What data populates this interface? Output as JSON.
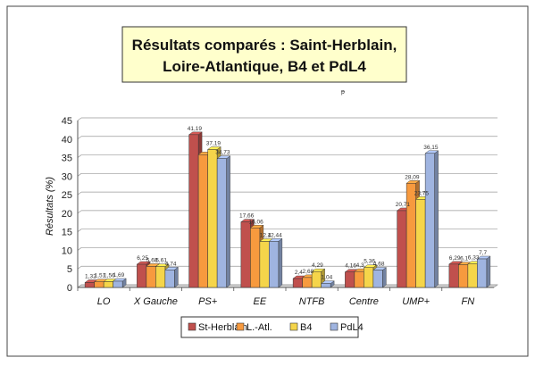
{
  "chart_data": {
    "type": "bar",
    "title": "Résultats comparés : Saint-Herblain, Loire-Atlantique, B4 et PdL4",
    "title_lines": [
      "Résultats comparés : Saint-Herblain,",
      "Loire-Atlantique, B4 et PdL4"
    ],
    "xlabel": "",
    "ylabel": "Résultats (%)",
    "ylim": [
      0,
      45
    ],
    "yticks": [
      "0",
      "5",
      "10",
      "15",
      "20",
      "25",
      "30",
      "35",
      "40",
      "45"
    ],
    "grid": true,
    "legend_position": "bottom",
    "categories": [
      "LO",
      "X Gauche",
      "PS+",
      "EE",
      "NTFB",
      "Centre",
      "UMP+",
      "FN"
    ],
    "series": [
      {
        "name": "St-Herblain",
        "color": "#c0504d",
        "values": [
          1.32,
          6.25,
          41.19,
          17.66,
          2.4,
          4.16,
          20.71,
          6.29
        ],
        "labels": [
          "1,32",
          "6,25",
          "41,19",
          "17,66",
          "2,4",
          "4,16",
          "20,71",
          "6,29"
        ]
      },
      {
        "name": "L.-Atl.",
        "color": "#f79a3e",
        "values": [
          1.51,
          5.68,
          35.8,
          16.06,
          2.68,
          4.3,
          28.09,
          6.1
        ],
        "labels": [
          "1,51",
          "5,68",
          "",
          "16,06",
          "2,68",
          "4,3",
          "28,09",
          "6,1"
        ]
      },
      {
        "name": "B4",
        "color": "#f5d54a",
        "values": [
          1.56,
          5.61,
          37.19,
          12.4,
          4.29,
          5.36,
          23.75,
          6.33
        ],
        "labels": [
          "1,56",
          "5,61",
          "37,19",
          "12,4",
          "4,29",
          "5,36",
          "23,75",
          "6,33"
        ]
      },
      {
        "name": "PdL4",
        "color": "#9fb4e0",
        "values": [
          1.69,
          4.74,
          34.73,
          12.44,
          1.04,
          4.68,
          36.15,
          7.7
        ],
        "labels": [
          "1,69",
          "4,74",
          "34,73",
          "12,44",
          "1,04",
          "4,68",
          "36,15",
          "7,7"
        ]
      }
    ]
  },
  "page_mark": "ᵽ"
}
